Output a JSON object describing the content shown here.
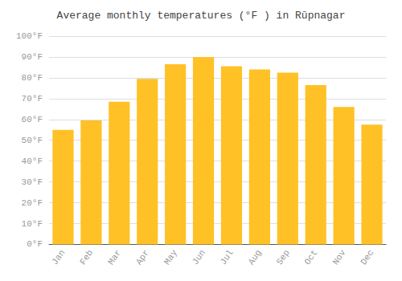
{
  "chart_data": {
    "type": "bar",
    "title": "Average monthly temperatures (°F ) in Rūpnagar",
    "categories": [
      "Jan",
      "Feb",
      "Mar",
      "Apr",
      "May",
      "Jun",
      "Jul",
      "Aug",
      "Sep",
      "Oct",
      "Nov",
      "Dec"
    ],
    "values": [
      55,
      59.5,
      68.5,
      79.5,
      86.5,
      90,
      85.5,
      84,
      82.5,
      76.5,
      66,
      57.5
    ],
    "color": "#FFC125",
    "ylim": [
      0,
      100
    ],
    "yticks": [
      {
        "value": 0,
        "label": "0°F"
      },
      {
        "value": 10,
        "label": "10°F"
      },
      {
        "value": 20,
        "label": "20°F"
      },
      {
        "value": 30,
        "label": "30°F"
      },
      {
        "value": 40,
        "label": "40°F"
      },
      {
        "value": 50,
        "label": "50°F"
      },
      {
        "value": 60,
        "label": "60°F"
      },
      {
        "value": 70,
        "label": "70°F"
      },
      {
        "value": 80,
        "label": "80°F"
      },
      {
        "value": 90,
        "label": "90°F"
      },
      {
        "value": 100,
        "label": "100°F"
      }
    ],
    "grid": true
  }
}
